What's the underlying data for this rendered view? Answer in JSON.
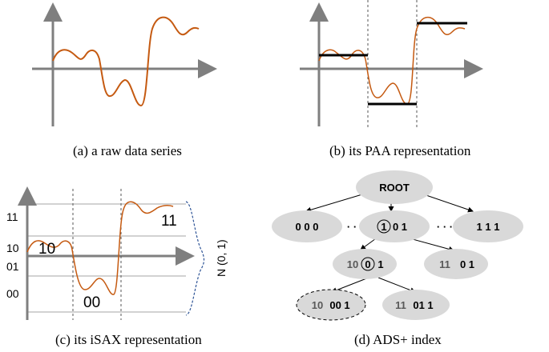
{
  "captions": {
    "a": "(a)  a raw data series",
    "b": "(b)  its PAA representation",
    "c": "(c)  its iSAX representation",
    "d": "(d)  ADS+ index"
  },
  "isax": {
    "y_labels": [
      "11",
      "10",
      "01",
      "00"
    ],
    "segment_symbols": [
      "10",
      "00",
      "11"
    ],
    "distribution_label": "N (0, 1)"
  },
  "tree": {
    "root": "ROOT",
    "level1": [
      "0 0 0",
      "1",
      "0 1",
      "1 1 1"
    ],
    "ellipsis": "· · ·",
    "level2_left": {
      "prefix": "10",
      "circled": "0",
      "suffix": "1"
    },
    "level2_right": {
      "prefix": "11",
      "rest": "0 1"
    },
    "level3_left": {
      "prefix": "10",
      "rest": "00 1"
    },
    "level3_right": {
      "prefix": "11",
      "rest": "01 1"
    }
  },
  "colors": {
    "series": "#c55a11",
    "axis": "#7f7f7f",
    "node_fill": "#d9d9d9",
    "distribution": "#2f5597"
  }
}
